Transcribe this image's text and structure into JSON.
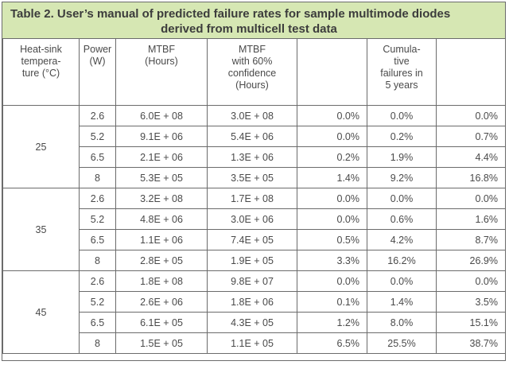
{
  "title": {
    "line1": "Table 2. User’s manual of predicted failure rates for sample multimode diodes",
    "line2": "derived from multicell test data"
  },
  "headers": [
    "Heat-sink\ntempera-\nture (°C)",
    "Power\n(W)",
    "MTBF\n(Hours)",
    "MTBF\nwith 60%\nconfidence\n(Hours)",
    "",
    "Cumula-\ntive\nfailures in\n5 years",
    ""
  ],
  "groups": [
    {
      "temperature": "25",
      "rows": [
        [
          "2.6",
          "6.0E + 08",
          "3.0E + 08",
          "0.0%",
          "0.0%",
          "0.0%"
        ],
        [
          "5.2",
          "9.1E + 06",
          "5.4E + 06",
          "0.0%",
          "0.2%",
          "0.7%"
        ],
        [
          "6.5",
          "2.1E + 06",
          "1.3E + 06",
          "0.2%",
          "1.9%",
          "4.4%"
        ],
        [
          "8",
          "5.3E + 05",
          "3.5E + 05",
          "1.4%",
          "9.2%",
          "16.8%"
        ]
      ]
    },
    {
      "temperature": "35",
      "rows": [
        [
          "2.6",
          "3.2E + 08",
          "1.7E + 08",
          "0.0%",
          "0.0%",
          "0.0%"
        ],
        [
          "5.2",
          "4.8E + 06",
          "3.0E + 06",
          "0.0%",
          "0.6%",
          "1.6%"
        ],
        [
          "6.5",
          "1.1E + 06",
          "7.4E + 05",
          "0.5%",
          "4.2%",
          "8.7%"
        ],
        [
          "8",
          "2.8E + 05",
          "1.9E + 05",
          "3.3%",
          "16.2%",
          "26.9%"
        ]
      ]
    },
    {
      "temperature": "45",
      "rows": [
        [
          "2.6",
          "1.8E + 08",
          "9.8E + 07",
          "0.0%",
          "0.0%",
          "0.0%"
        ],
        [
          "5.2",
          "2.6E + 06",
          "1.8E + 06",
          "0.1%",
          "1.4%",
          "3.5%"
        ],
        [
          "6.5",
          "6.1E + 05",
          "4.3E + 05",
          "1.2%",
          "8.0%",
          "15.1%"
        ],
        [
          "8",
          "1.5E + 05",
          "1.1E + 05",
          "6.5%",
          "25.5%",
          "38.7%"
        ]
      ]
    }
  ],
  "colors": {
    "title_background": "#d6e7b3",
    "border": "#6b6b6b",
    "text": "#4a4a4a"
  }
}
